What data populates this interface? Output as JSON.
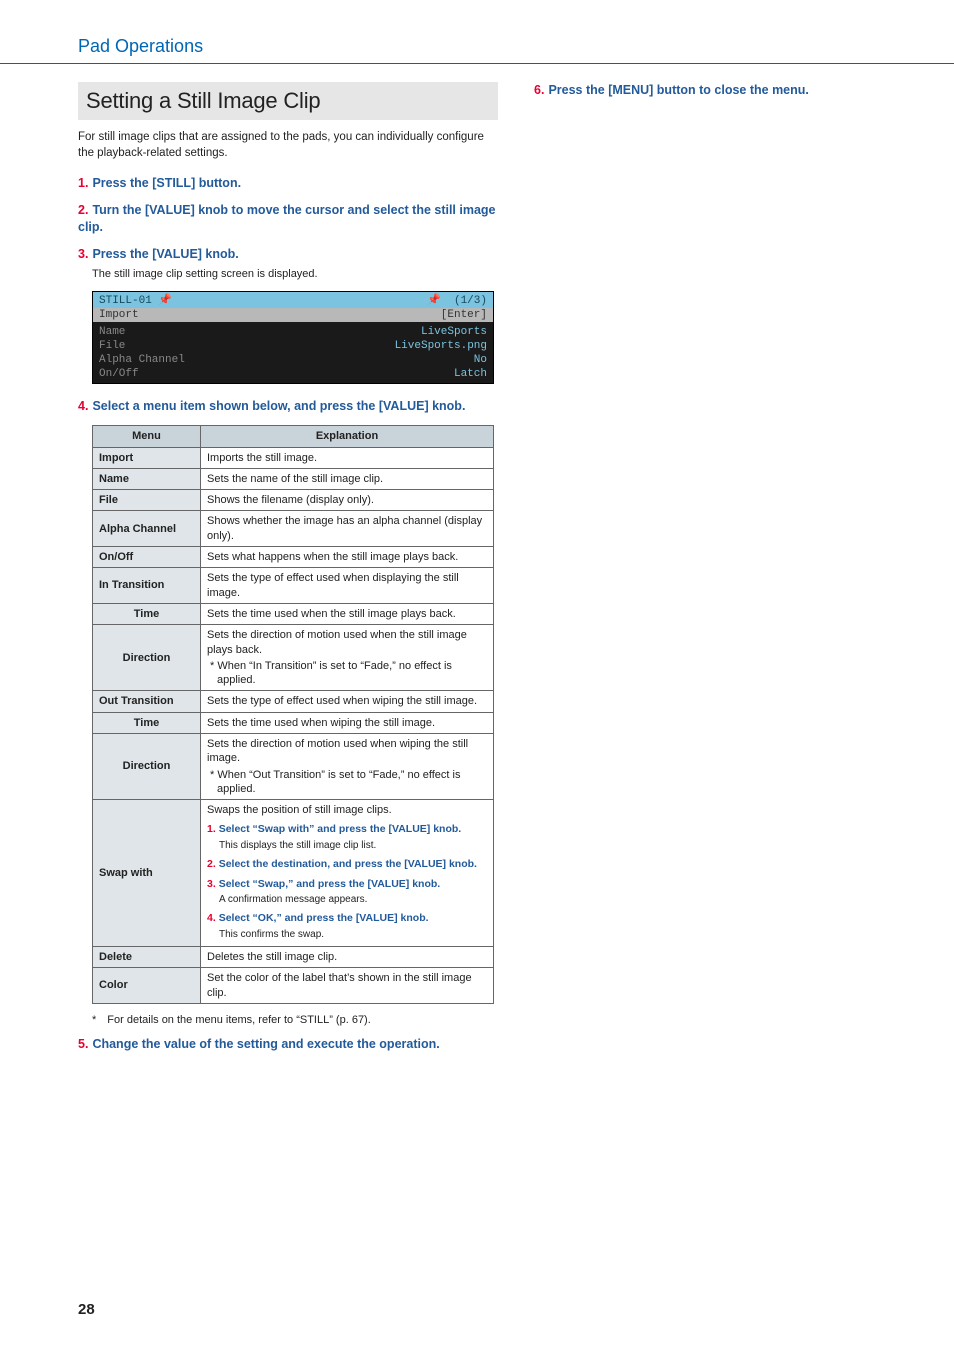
{
  "header_title": "Pad Operations",
  "page_number": "28",
  "section_title": "Setting a Still Image Clip",
  "intro": "For still image clips that are assigned to the pads, you can individually configure the playback-related settings.",
  "steps": {
    "s1": {
      "num": "1.",
      "title": "Press the [STILL] button."
    },
    "s2": {
      "num": "2.",
      "title": "Turn the [VALUE] knob to move the cursor and select the still image clip."
    },
    "s3": {
      "num": "3.",
      "title": "Press the [VALUE] knob.",
      "note": "The still image clip setting screen is displayed."
    },
    "s4": {
      "num": "4.",
      "title": "Select a menu item shown below, and press the [VALUE] knob."
    },
    "s5": {
      "num": "5.",
      "title": "Change the value of the setting and execute the operation."
    },
    "s6": {
      "num": "6.",
      "title": "Press the [MENU] button to close the menu."
    }
  },
  "device_screen": {
    "title_left": "STILL-01",
    "title_right": "(1/3)",
    "import_label": "Import",
    "import_val": "[Enter]",
    "rows": {
      "name": {
        "label": "Name",
        "val": "LiveSports"
      },
      "file": {
        "label": "File",
        "val": "LiveSports.png"
      },
      "alpha": {
        "label": "Alpha Channel",
        "val": "No"
      },
      "onoff": {
        "label": "On/Off",
        "val": "Latch"
      }
    }
  },
  "table": {
    "header_menu": "Menu",
    "header_explanation": "Explanation",
    "import": {
      "m": "Import",
      "e": "Imports the still image."
    },
    "name": {
      "m": "Name",
      "e": "Sets the name of the still image clip."
    },
    "file": {
      "m": "File",
      "e": "Shows the filename (display only)."
    },
    "alpha": {
      "m": "Alpha Channel",
      "e": "Shows whether the image has an alpha channel (display only)."
    },
    "onoff": {
      "m": "On/Off",
      "e": "Sets what happens when the still image plays back."
    },
    "in_trans": {
      "m": "In Transition",
      "e": "Sets the type of effect used when displaying the still image."
    },
    "in_time": {
      "m": "Time",
      "e": "Sets the time used when the still image plays back."
    },
    "in_dir": {
      "m": "Direction",
      "e1": "Sets the direction of motion used when the still image plays back.",
      "e2": "* When “In Transition” is set to “Fade,” no effect is applied."
    },
    "out_trans": {
      "m": "Out Transition",
      "e": "Sets the type of effect used when wiping the still image."
    },
    "out_time": {
      "m": "Time",
      "e": "Sets the time used when wiping the still image."
    },
    "out_dir": {
      "m": "Direction",
      "e1": "Sets the direction of motion used when wiping the still image.",
      "e2": "* When “Out Transition” is set to “Fade,” no effect is applied."
    },
    "swap": {
      "m": "Swap with",
      "intro": "Swaps the position of still image clips.",
      "s1": {
        "n": "1.",
        "t": "Select “Swap with” and press the [VALUE] knob.",
        "note": "This displays the still image clip list."
      },
      "s2": {
        "n": "2.",
        "t": "Select the destination, and press the [VALUE] knob."
      },
      "s3": {
        "n": "3.",
        "t": "Select “Swap,” and press the [VALUE] knob.",
        "note": "A confirmation message appears."
      },
      "s4": {
        "n": "4.",
        "t": "Select “OK,” and press the [VALUE] knob.",
        "note": "This confirms the swap."
      }
    },
    "delete": {
      "m": "Delete",
      "e": "Deletes the still image clip."
    },
    "color": {
      "m": "Color",
      "e": "Set the color of the label that’s shown in the still image clip."
    }
  },
  "footnote": "* For details on the menu items, refer to “STILL” (p. 67)."
}
